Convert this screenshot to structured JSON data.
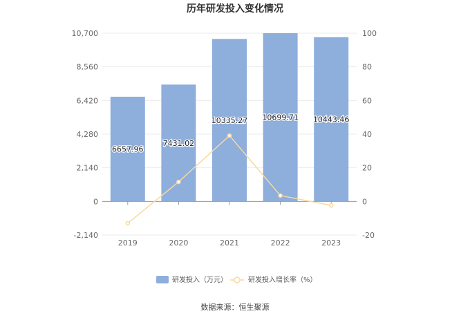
{
  "chart_data": {
    "type": "bar",
    "title": "历年研发投入变化情况",
    "categories": [
      "2019",
      "2020",
      "2021",
      "2022",
      "2023"
    ],
    "series": [
      {
        "name": "研发投入（万元）",
        "type": "bar",
        "axis": "left",
        "values": [
          6657.96,
          7431.02,
          10335.27,
          10699.71,
          10443.46
        ],
        "value_labels": [
          "6657.96",
          "7431.02",
          "10335.27",
          "10699.71",
          "10443.46"
        ],
        "color": "#8eaedc"
      },
      {
        "name": "研发投入增长率（%）",
        "type": "line",
        "axis": "right",
        "values": [
          -13,
          11.6,
          39.1,
          3.5,
          -2.4
        ],
        "color": "#f8d9a0"
      }
    ],
    "y_left": {
      "ylim": [
        -2140,
        10700
      ],
      "ticks": [
        -2140,
        0,
        2140,
        4280,
        6420,
        8560,
        10700
      ],
      "tick_labels": [
        "-2,140",
        "0",
        "2,140",
        "4,280",
        "6,420",
        "8,560",
        "10,700"
      ]
    },
    "y_right": {
      "ylim": [
        -20,
        100
      ],
      "ticks": [
        -20,
        0,
        20,
        40,
        60,
        80,
        100
      ],
      "tick_labels": [
        "-20",
        "0",
        "20",
        "40",
        "60",
        "80",
        "100"
      ]
    },
    "grid": true,
    "legend_position": "bottom",
    "source": "数据来源：恒生聚源"
  }
}
